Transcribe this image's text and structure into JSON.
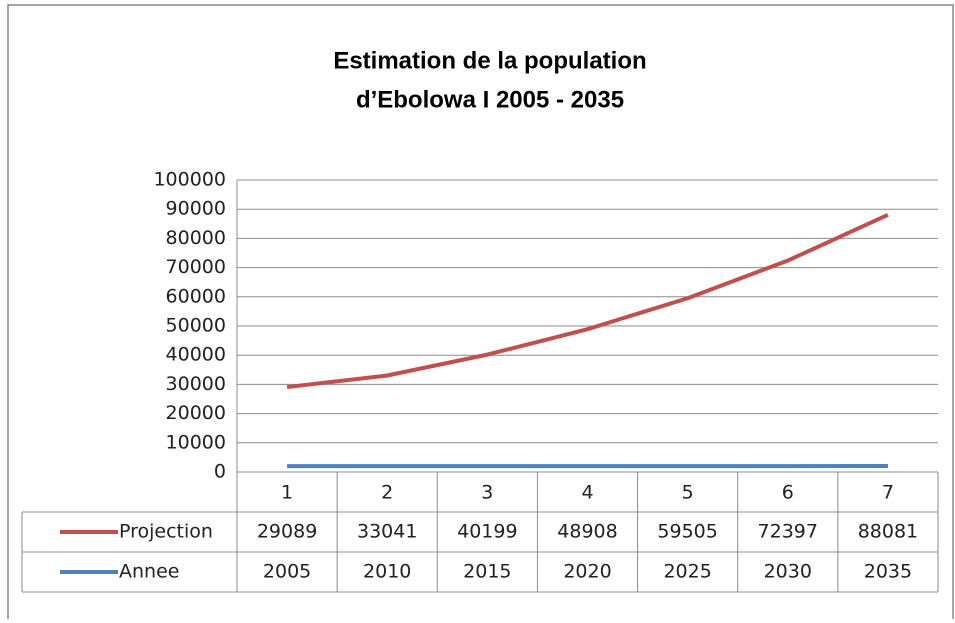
{
  "chart_data": {
    "type": "line",
    "title": [
      "Estimation de la population",
      "d’Ebolowa I 2005 - 2035"
    ],
    "categories": [
      1,
      2,
      3,
      4,
      5,
      6,
      7
    ],
    "series": [
      {
        "name": "Projection",
        "color": "#c0504d",
        "values": [
          29089,
          33041,
          40199,
          48908,
          59505,
          72397,
          88081
        ]
      },
      {
        "name": "Annee",
        "color": "#4f81bd",
        "values": [
          2005,
          2010,
          2015,
          2020,
          2025,
          2030,
          2035
        ]
      }
    ],
    "ylim": [
      0,
      100000
    ],
    "yticks": [
      0,
      10000,
      20000,
      30000,
      40000,
      50000,
      60000,
      70000,
      80000,
      90000,
      100000
    ],
    "grid": true
  }
}
